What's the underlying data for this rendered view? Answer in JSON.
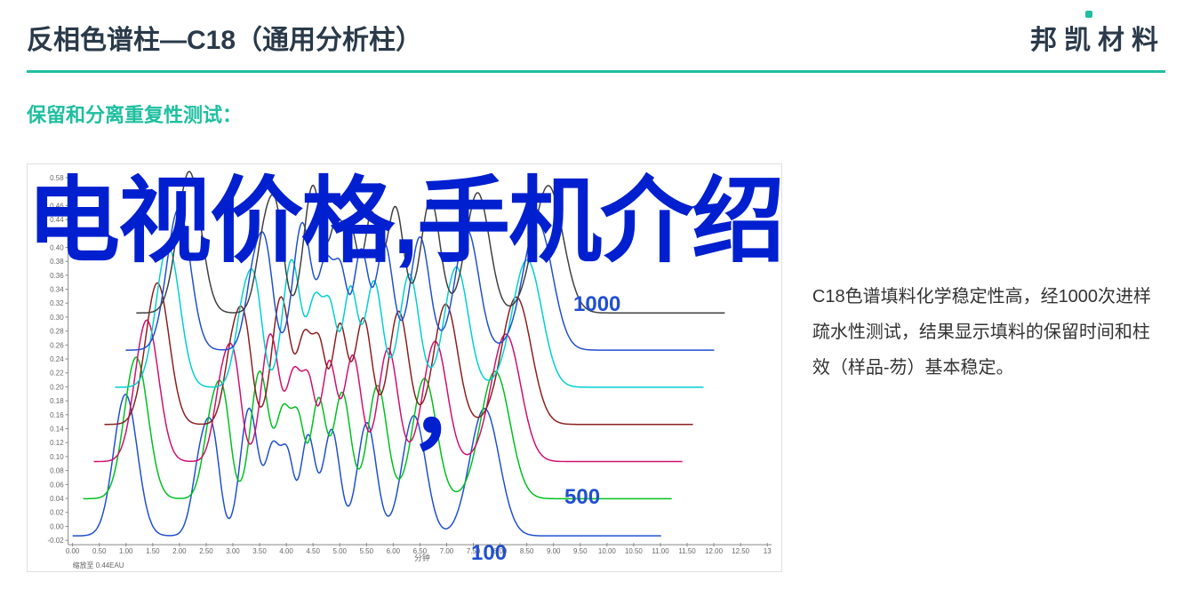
{
  "header": {
    "title": "反相色谱柱—C18（通用分析柱）",
    "brand": "邦凯材料"
  },
  "subtitle": "保留和分离重复性测试：",
  "overlay": {
    "line1": "电视价格,手机介绍",
    "comma": "，"
  },
  "description": "C18色谱填料化学稳定性高，经1000次进样疏水性测试，结果显示填料的保留时间和柱效（样品-芴）基本稳定。",
  "chart": {
    "labels": {
      "l1000": "1000",
      "l500": "500",
      "l100": "100"
    },
    "colors": {
      "trace1": "#2050d0",
      "trace2": "#00c020",
      "trace3": "#d01070",
      "trace4": "#8b2020",
      "trace5": "#00d0d0",
      "trace6": "#2050d0",
      "trace7": "#404040",
      "axis": "#888888",
      "tick_text": "#666666"
    },
    "y_ticks": [
      "0.58",
      "0.48",
      "0.46",
      "0.44",
      "0.42",
      "0.40",
      "0.38",
      "0.36",
      "0.34",
      "0.32",
      "0.30",
      "0.28",
      "0.26",
      "0.24",
      "0.22",
      "0.20",
      "0.18",
      "0.16",
      "0.14",
      "0.12",
      "0.10",
      "0.08",
      "0.06",
      "0.04",
      "0.02",
      "0.00",
      "-0.02"
    ],
    "x_ticks": [
      "0.00",
      "0.50",
      "1.00",
      "1.50",
      "2.00",
      "2.50",
      "3.00",
      "3.50",
      "4.00",
      "4.50",
      "5.00",
      "5.50",
      "6.00",
      "6.50",
      "7.00",
      "7.50",
      "8.00",
      "8.50",
      "9.00",
      "9.50",
      "10.00",
      "10.50",
      "11.00",
      "11.50",
      "12.00",
      "12.50",
      "13"
    ],
    "x_label": "分钟",
    "footer": "缩放至 0.44EAU"
  }
}
